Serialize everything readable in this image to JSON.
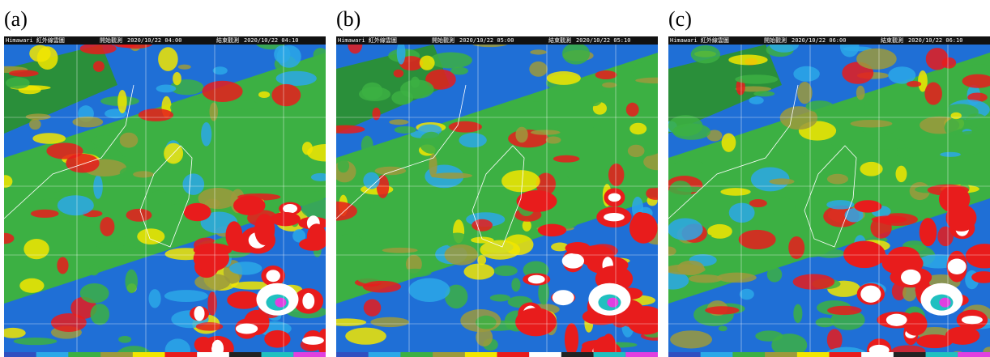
{
  "panels": [
    {
      "label": "(a)",
      "header": {
        "product": "Himawari 紅外線雲圖",
        "start_label": "開始觀測",
        "start_time": "2020/10/22 04:00",
        "end_label": "結束觀測",
        "end_time": "2020/10/22 04:10"
      }
    },
    {
      "label": "(b)",
      "header": {
        "product": "Himawari 紅外線雲圖",
        "start_label": "開始觀測",
        "start_time": "2020/10/22 05:00",
        "end_label": "結束觀測",
        "end_time": "2020/10/22 05:10"
      }
    },
    {
      "label": "(c)",
      "header": {
        "product": "Himawari 紅外線雲圖",
        "start_label": "開始觀測",
        "start_time": "2020/10/22 06:00",
        "end_label": "結束觀測",
        "end_time": "2020/10/22 06:10"
      }
    }
  ]
}
